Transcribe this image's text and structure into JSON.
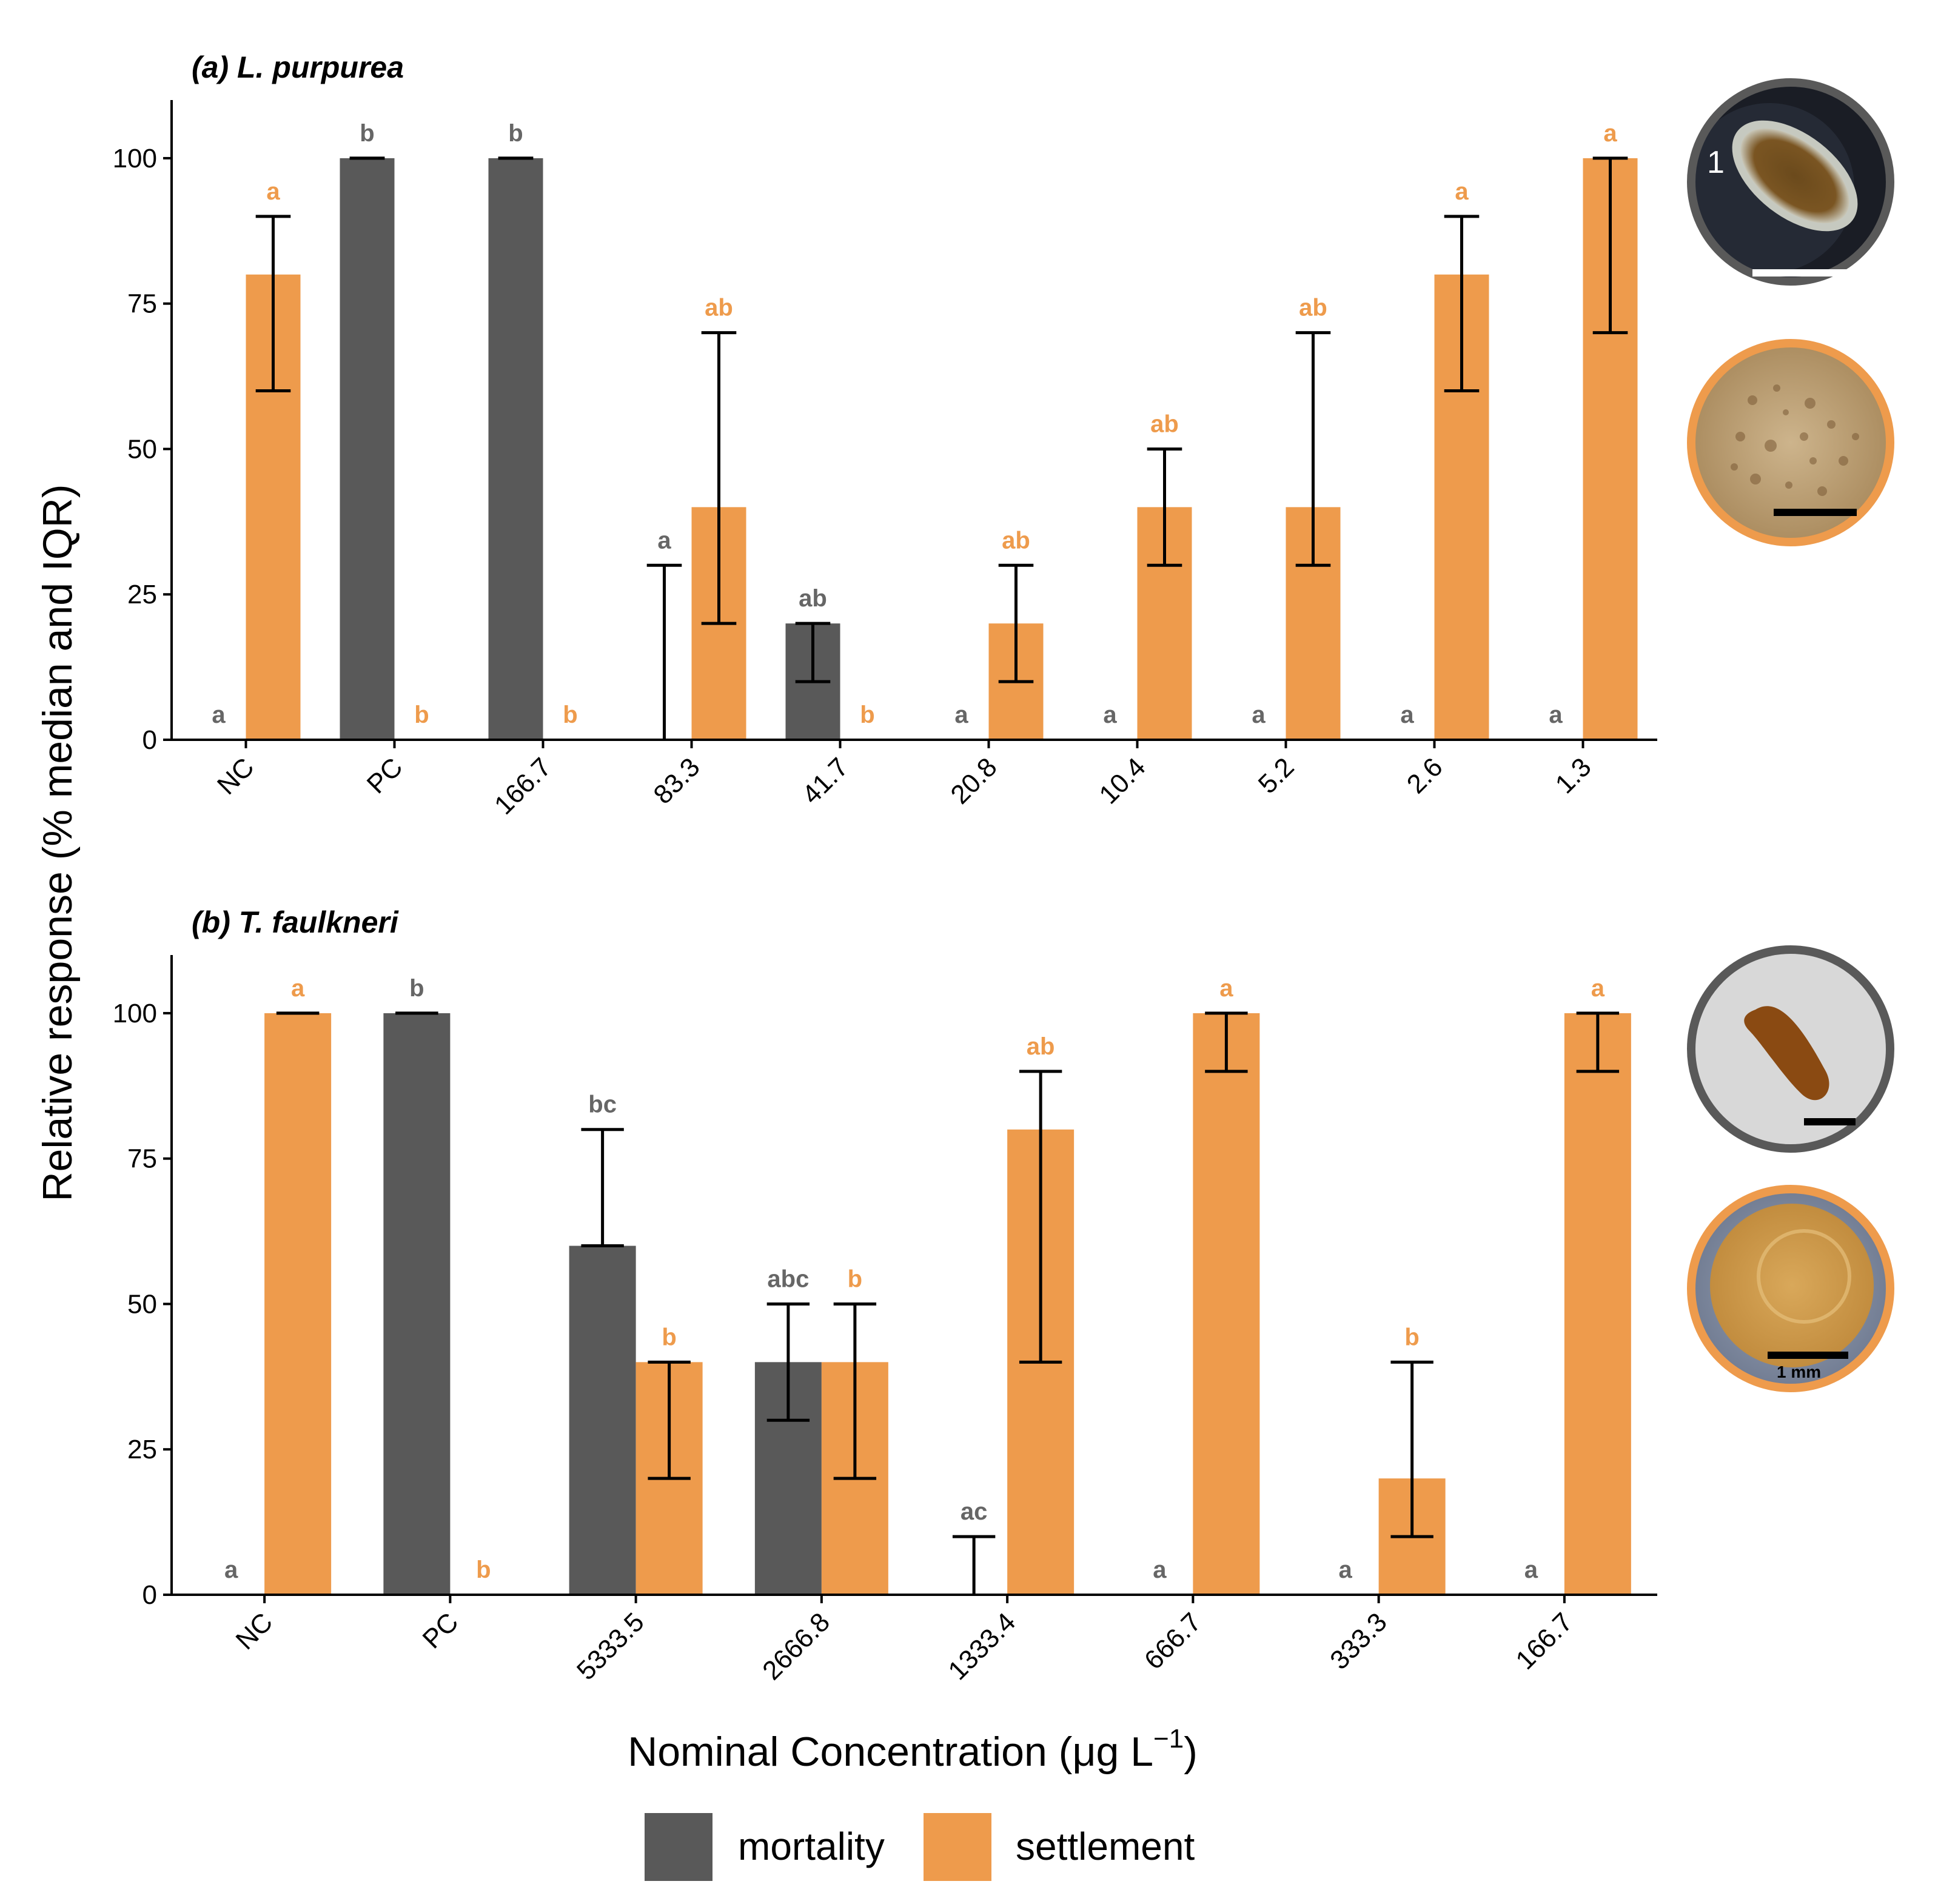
{
  "colors": {
    "mortality": "#595959",
    "settlement": "#EE9B4C",
    "mortality_label": "#666666",
    "settlement_label": "#EE9B4C",
    "axis": "#000000"
  },
  "ylabel": "Relative response (% median and IQR)",
  "xlabel": "Nominal Concentration (μg L",
  "xlabel_sup": "−1",
  "xlabel_close": ")",
  "legend": {
    "mortality": "mortality",
    "settlement": "settlement"
  },
  "photo_scale_label": "1 mm",
  "photo_number": "1",
  "chart_data": [
    {
      "type": "bar",
      "title": "(a) L. purpurea",
      "ylim": [
        0,
        110
      ],
      "yticks": [
        0,
        25,
        50,
        75,
        100
      ],
      "categories": [
        "NC",
        "PC",
        "166.7",
        "83.3",
        "41.7",
        "20.8",
        "10.4",
        "5.2",
        "2.6",
        "1.3"
      ],
      "series": [
        {
          "name": "mortality",
          "values": [
            0,
            100,
            100,
            0,
            20,
            0,
            0,
            0,
            0,
            0
          ],
          "iqr": [
            null,
            [
              100,
              100
            ],
            [
              100,
              100
            ],
            [
              0,
              30
            ],
            [
              10,
              20
            ],
            null,
            null,
            null,
            null,
            null
          ],
          "labels": [
            "a",
            "b",
            "b",
            "a",
            "ab",
            "a",
            "a",
            "a",
            "a",
            "a"
          ]
        },
        {
          "name": "settlement",
          "values": [
            80,
            0,
            0,
            40,
            0,
            20,
            40,
            40,
            80,
            100
          ],
          "iqr": [
            [
              60,
              90
            ],
            null,
            null,
            [
              20,
              70
            ],
            null,
            [
              10,
              30
            ],
            [
              30,
              50
            ],
            [
              30,
              70
            ],
            [
              60,
              90
            ],
            [
              70,
              100
            ]
          ],
          "labels": [
            "a",
            "b",
            "b",
            "ab",
            "b",
            "ab",
            "ab",
            "ab",
            "a",
            "a"
          ]
        }
      ]
    },
    {
      "type": "bar",
      "title": "(b) T. faulkneri",
      "ylim": [
        0,
        110
      ],
      "yticks": [
        0,
        25,
        50,
        75,
        100
      ],
      "categories": [
        "NC",
        "PC",
        "5333.5",
        "2666.8",
        "1333.4",
        "666.7",
        "333.3",
        "166.7"
      ],
      "series": [
        {
          "name": "mortality",
          "values": [
            0,
            100,
            60,
            40,
            0,
            0,
            0,
            0
          ],
          "iqr": [
            null,
            [
              100,
              100
            ],
            [
              60,
              80
            ],
            [
              30,
              50
            ],
            [
              0,
              10
            ],
            null,
            null,
            null
          ],
          "labels": [
            "a",
            "b",
            "bc",
            "abc",
            "ac",
            "a",
            "a",
            "a"
          ]
        },
        {
          "name": "settlement",
          "values": [
            100,
            0,
            40,
            40,
            80,
            100,
            20,
            100
          ],
          "iqr": [
            [
              100,
              100
            ],
            null,
            [
              20,
              40
            ],
            [
              20,
              50
            ],
            [
              40,
              90
            ],
            [
              90,
              100
            ],
            [
              10,
              40
            ],
            [
              90,
              100
            ]
          ],
          "labels": [
            "a",
            "b",
            "b",
            "b",
            "ab",
            "a",
            "b",
            "a"
          ]
        }
      ]
    }
  ]
}
